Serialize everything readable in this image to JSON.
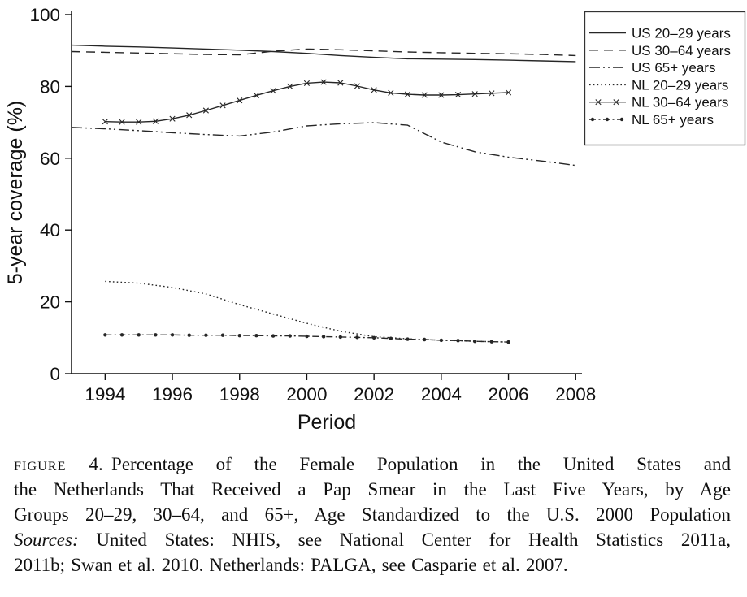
{
  "page": {
    "background": "#ffffff",
    "ink_color": "#262626"
  },
  "chart_data": {
    "type": "line",
    "title": "",
    "xlabel": "Period",
    "ylabel": "5-year coverage (%)",
    "xlim": [
      1993,
      2008.2
    ],
    "ylim": [
      0,
      100
    ],
    "x_ticks": [
      1994,
      1996,
      1998,
      2000,
      2002,
      2004,
      2006,
      2008
    ],
    "y_ticks": [
      0,
      20,
      40,
      60,
      80,
      100
    ],
    "grid": false,
    "legend_position": "top-right",
    "series": [
      {
        "id": "us-20-29",
        "name": "US 20–29 years",
        "line_style": "solid",
        "marker": "none",
        "x": [
          1993,
          1994,
          1995,
          1996,
          1997,
          1998,
          1999,
          2000,
          2001,
          2002,
          2003,
          2004,
          2005,
          2006,
          2007,
          2008
        ],
        "y": [
          91.5,
          91.2,
          91.0,
          90.7,
          90.4,
          90.1,
          89.7,
          89.2,
          88.6,
          88.1,
          87.7,
          87.6,
          87.5,
          87.3,
          87.1,
          86.9
        ]
      },
      {
        "id": "us-30-64",
        "name": "US 30–64 years",
        "line_style": "dashed",
        "marker": "none",
        "x": [
          1993,
          1994,
          1995,
          1996,
          1997,
          1998,
          1999,
          2000,
          2001,
          2002,
          2003,
          2004,
          2005,
          2006,
          2007,
          2008
        ],
        "y": [
          89.7,
          89.5,
          89.3,
          89.1,
          88.9,
          88.8,
          89.8,
          90.4,
          90.2,
          89.9,
          89.6,
          89.4,
          89.2,
          89.1,
          88.9,
          88.6
        ]
      },
      {
        "id": "us-65",
        "name": "US 65+ years",
        "line_style": "dash-dot-dot",
        "marker": "none",
        "x": [
          1993,
          1994,
          1995,
          1996,
          1997,
          1998,
          1999,
          2000,
          2001,
          2002,
          2003,
          2004,
          2005,
          2006,
          2007,
          2008
        ],
        "y": [
          68.6,
          68.2,
          67.7,
          67.1,
          66.6,
          66.2,
          67.3,
          69.0,
          69.6,
          69.9,
          69.2,
          64.5,
          61.8,
          60.3,
          59.2,
          58.0
        ]
      },
      {
        "id": "nl-20-29",
        "name": "NL 20–29 years",
        "line_style": "dotted",
        "marker": "none",
        "x": [
          1994,
          1995,
          1996,
          1997,
          1998,
          1999,
          2000,
          2001,
          2002,
          2003,
          2004,
          2005,
          2006
        ],
        "y": [
          25.7,
          25.2,
          24.0,
          22.2,
          19.2,
          16.6,
          14.0,
          11.8,
          10.3,
          9.7,
          9.3,
          9.0,
          8.8
        ]
      },
      {
        "id": "nl-30-64",
        "name": "NL 30–64 years",
        "line_style": "solid",
        "marker": "x",
        "x": [
          1994,
          1994.5,
          1995,
          1995.5,
          1996,
          1996.5,
          1997,
          1997.5,
          1998,
          1998.5,
          1999,
          1999.5,
          2000,
          2000.5,
          2001,
          2001.5,
          2002,
          2002.5,
          2003,
          2003.5,
          2004,
          2004.5,
          2005,
          2005.5,
          2006
        ],
        "y": [
          70.2,
          70.1,
          70.1,
          70.3,
          71.0,
          72.0,
          73.3,
          74.7,
          76.1,
          77.5,
          78.8,
          80.0,
          80.9,
          81.2,
          81.0,
          80.1,
          79.0,
          78.2,
          77.8,
          77.6,
          77.6,
          77.7,
          77.9,
          78.1,
          78.3
        ]
      },
      {
        "id": "nl-65",
        "name": "NL 65+ years",
        "line_style": "dash-dot",
        "marker": "dot",
        "x": [
          1994,
          1994.5,
          1995,
          1995.5,
          1996,
          1996.5,
          1997,
          1997.5,
          1998,
          1998.5,
          1999,
          1999.5,
          2000,
          2000.5,
          2001,
          2001.5,
          2002,
          2002.5,
          2003,
          2003.5,
          2004,
          2004.5,
          2005,
          2005.5,
          2006
        ],
        "y": [
          10.8,
          10.8,
          10.8,
          10.8,
          10.8,
          10.7,
          10.7,
          10.7,
          10.6,
          10.6,
          10.5,
          10.5,
          10.4,
          10.3,
          10.2,
          10.1,
          10.0,
          9.8,
          9.6,
          9.5,
          9.3,
          9.2,
          9.0,
          8.9,
          8.8
        ]
      }
    ]
  },
  "caption": {
    "label": "FIGURE",
    "number": "4.",
    "line1_rest": "Percentage of the Female Population in the United States and",
    "line2": "the Netherlands That Received a Pap Smear in the Last Five Years, by Age",
    "line3": "Groups 20–29, 30–64, and 65+, Age Standardized to the U.S. 2000 Population",
    "sources_label": "Sources:",
    "line4_rest": "United States: NHIS, see National Center for Health Statistics 2011a,",
    "line5": "2011b; Swan et al. 2010. Netherlands: PALGA, see Casparie et al. 2007."
  }
}
